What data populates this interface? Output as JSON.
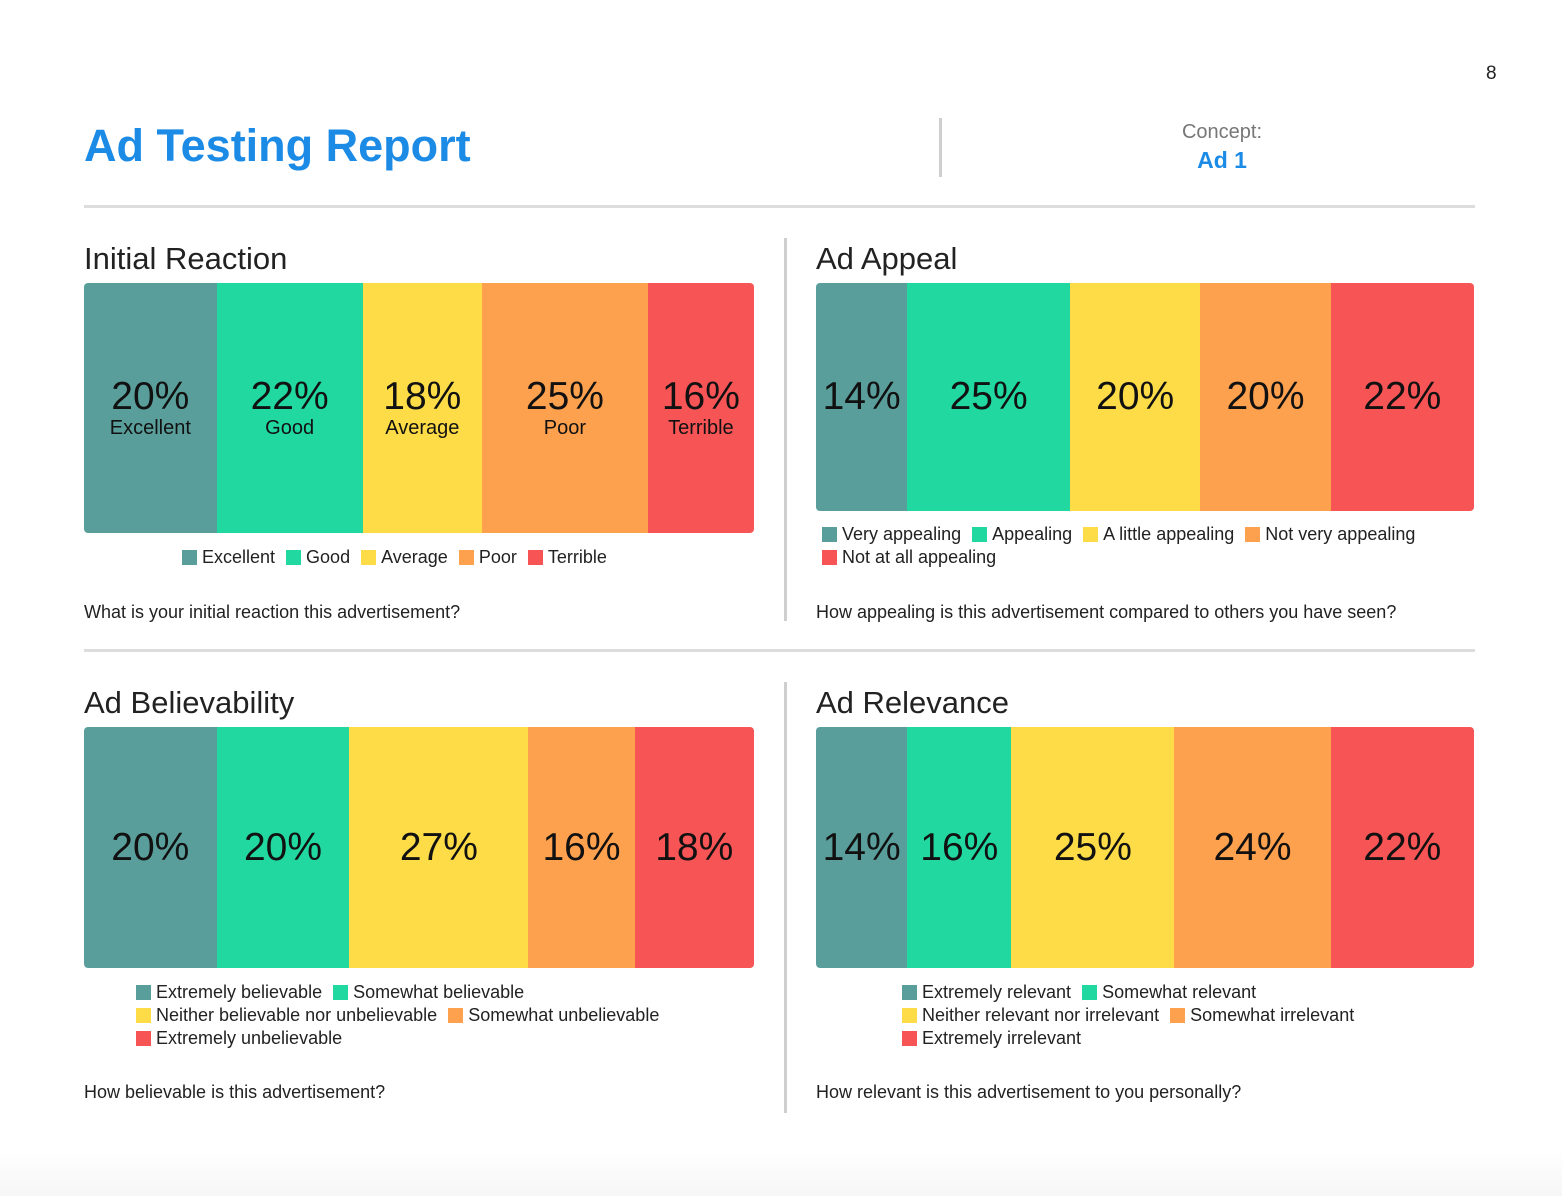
{
  "page_number": "8",
  "header": {
    "title": "Ad Testing Report",
    "concept_label": "Concept:",
    "concept_value": "Ad 1"
  },
  "colors": {
    "teal": "#5a9e9b",
    "green": "#21d8a0",
    "yellow": "#fedc48",
    "orange": "#fea14e",
    "red": "#f75456",
    "title_blue": "#1c8be6"
  },
  "chart_data": [
    {
      "type": "bar",
      "stacked": "100%",
      "title": "Initial Reaction",
      "categories": [
        "Excellent",
        "Good",
        "Average",
        "Poor",
        "Terrible"
      ],
      "values": [
        20,
        22,
        18,
        25,
        16
      ],
      "labels": [
        "20%",
        "22%",
        "18%",
        "25%",
        "16%"
      ],
      "colors": [
        "#5a9e9b",
        "#21d8a0",
        "#fedc48",
        "#fea14e",
        "#f75456"
      ],
      "legend_rows": [
        [
          0,
          1,
          2,
          3,
          4
        ]
      ],
      "question": "What is your initial reaction this advertisement?"
    },
    {
      "type": "bar",
      "stacked": "100%",
      "title": "Ad Appeal",
      "categories": [
        "Very appealing",
        "Appealing",
        "A little appealing",
        "Not very appealing",
        "Not at all appealing"
      ],
      "values": [
        14,
        25,
        20,
        20,
        22
      ],
      "labels": [
        "14%",
        "25%",
        "20%",
        "20%",
        "22%"
      ],
      "colors": [
        "#5a9e9b",
        "#21d8a0",
        "#fedc48",
        "#fea14e",
        "#f75456"
      ],
      "legend_rows": [
        [
          0,
          1,
          2,
          3
        ],
        [
          4
        ]
      ],
      "question": "How appealing is this advertisement compared to others you have seen?"
    },
    {
      "type": "bar",
      "stacked": "100%",
      "title": "Ad Believability",
      "categories": [
        "Extremely believable",
        "Somewhat believable",
        "Neither believable nor unbelievable",
        "Somewhat unbelievable",
        "Extremely unbelievable"
      ],
      "values": [
        20,
        20,
        27,
        16,
        18
      ],
      "labels": [
        "20%",
        "20%",
        "27%",
        "16%",
        "18%"
      ],
      "colors": [
        "#5a9e9b",
        "#21d8a0",
        "#fedc48",
        "#fea14e",
        "#f75456"
      ],
      "legend_rows": [
        [
          0,
          1
        ],
        [
          2,
          3
        ],
        [
          4
        ]
      ],
      "question": "How believable is this advertisement?"
    },
    {
      "type": "bar",
      "stacked": "100%",
      "title": "Ad Relevance",
      "categories": [
        "Extremely relevant",
        "Somewhat relevant",
        "Neither relevant nor irrelevant",
        "Somewhat irrelevant",
        "Extremely irrelevant"
      ],
      "values": [
        14,
        16,
        25,
        24,
        22
      ],
      "labels": [
        "14%",
        "16%",
        "25%",
        "24%",
        "22%"
      ],
      "colors": [
        "#5a9e9b",
        "#21d8a0",
        "#fedc48",
        "#fea14e",
        "#f75456"
      ],
      "legend_rows": [
        [
          0,
          1
        ],
        [
          2,
          3
        ],
        [
          4
        ]
      ],
      "question": "How relevant is this advertisement to you personally?"
    }
  ]
}
